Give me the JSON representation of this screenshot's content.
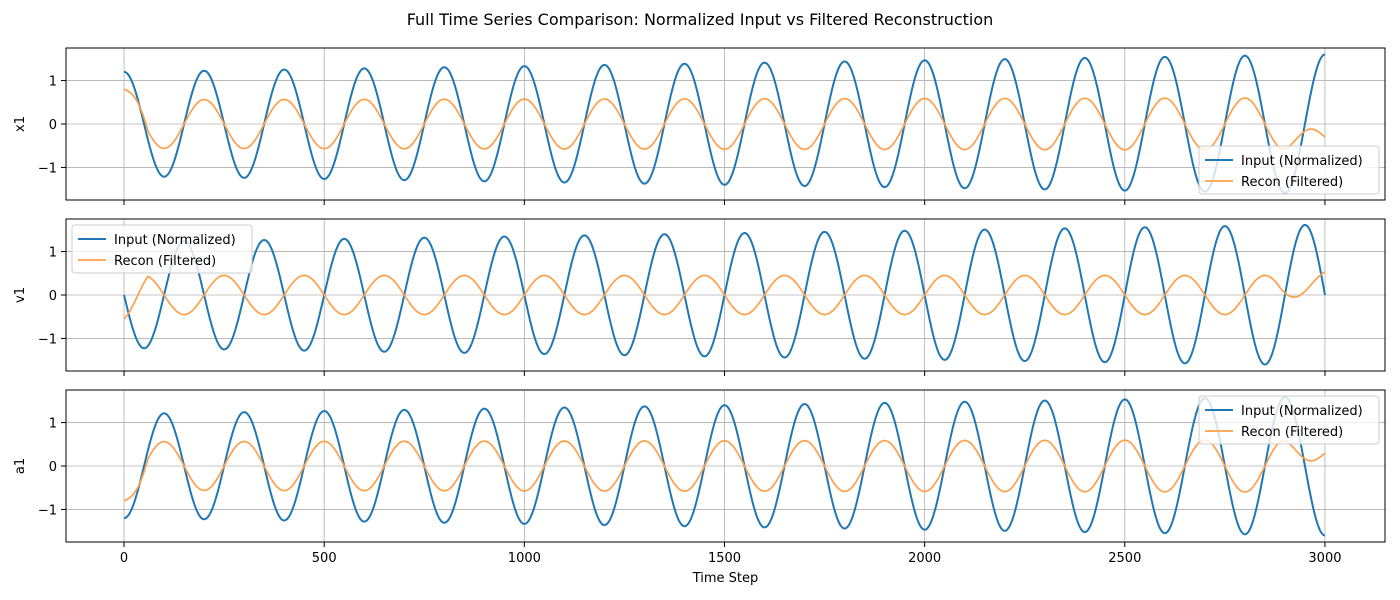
{
  "title": "Full Time Series Comparison: Normalized Input vs Filtered Reconstruction",
  "colors": {
    "input": "#1f77b4",
    "recon": "#ff9f4a",
    "grid": "#b0b0b0",
    "axis": "#000000"
  },
  "chart_data": [
    {
      "type": "line",
      "ylabel": "x1",
      "xlabel": "",
      "xlim": [
        -145,
        3150
      ],
      "ylim": [
        -1.75,
        1.75
      ],
      "xticks": [
        0,
        500,
        1000,
        1500,
        2000,
        2500,
        3000
      ],
      "yticks": [
        -1,
        0,
        1
      ],
      "tick_labels_x": false,
      "grid": true,
      "legend": "lower-right",
      "series": [
        {
          "name": "Input (Normalized)",
          "kind": "input",
          "amp_start": 1.2,
          "amp_end": 1.6,
          "period": 200,
          "phase_deg": 90,
          "x_start": 0,
          "x_end": 3000
        },
        {
          "name": "Recon (Filtered)",
          "kind": "recon",
          "amp_start": 0.56,
          "amp_end": 0.6,
          "period": 200,
          "phase_deg": 90,
          "start_value": 0.8,
          "end_value": -0.3,
          "x_start": 0,
          "x_end": 3000
        }
      ]
    },
    {
      "type": "line",
      "ylabel": "v1",
      "xlabel": "",
      "xlim": [
        -145,
        3150
      ],
      "ylim": [
        -1.75,
        1.75
      ],
      "xticks": [
        0,
        500,
        1000,
        1500,
        2000,
        2500,
        3000
      ],
      "yticks": [
        -1,
        0,
        1
      ],
      "tick_labels_x": false,
      "grid": true,
      "legend": "upper-left",
      "series": [
        {
          "name": "Input (Normalized)",
          "kind": "input",
          "amp_start": 1.22,
          "amp_end": 1.62,
          "period": 200,
          "phase_deg": 180,
          "x_start": 0,
          "x_end": 3000
        },
        {
          "name": "Recon (Filtered)",
          "kind": "recon",
          "amp_start": 0.45,
          "amp_end": 0.45,
          "period": 200,
          "phase_deg": 0,
          "start_value": -0.55,
          "end_value": 0.53,
          "x_start": 0,
          "x_end": 3000
        }
      ]
    },
    {
      "type": "line",
      "ylabel": "a1",
      "xlabel": "Time Step",
      "xlim": [
        -145,
        3150
      ],
      "ylim": [
        -1.75,
        1.75
      ],
      "xticks": [
        0,
        500,
        1000,
        1500,
        2000,
        2500,
        3000
      ],
      "yticks": [
        -1,
        0,
        1
      ],
      "xtick_labels": [
        "0",
        "500",
        "1000",
        "1500",
        "2000",
        "2500",
        "3000"
      ],
      "ytick_labels": [
        "−1",
        "0",
        "1"
      ],
      "tick_labels_x": true,
      "grid": true,
      "legend": "upper-right",
      "series": [
        {
          "name": "Input (Normalized)",
          "kind": "input",
          "amp_start": 1.2,
          "amp_end": 1.6,
          "period": 200,
          "phase_deg": 270,
          "x_start": 0,
          "x_end": 3000
        },
        {
          "name": "Recon (Filtered)",
          "kind": "recon",
          "amp_start": 0.56,
          "amp_end": 0.6,
          "period": 200,
          "phase_deg": 270,
          "start_value": -0.8,
          "end_value": 0.3,
          "x_start": 0,
          "x_end": 3000
        }
      ]
    }
  ]
}
